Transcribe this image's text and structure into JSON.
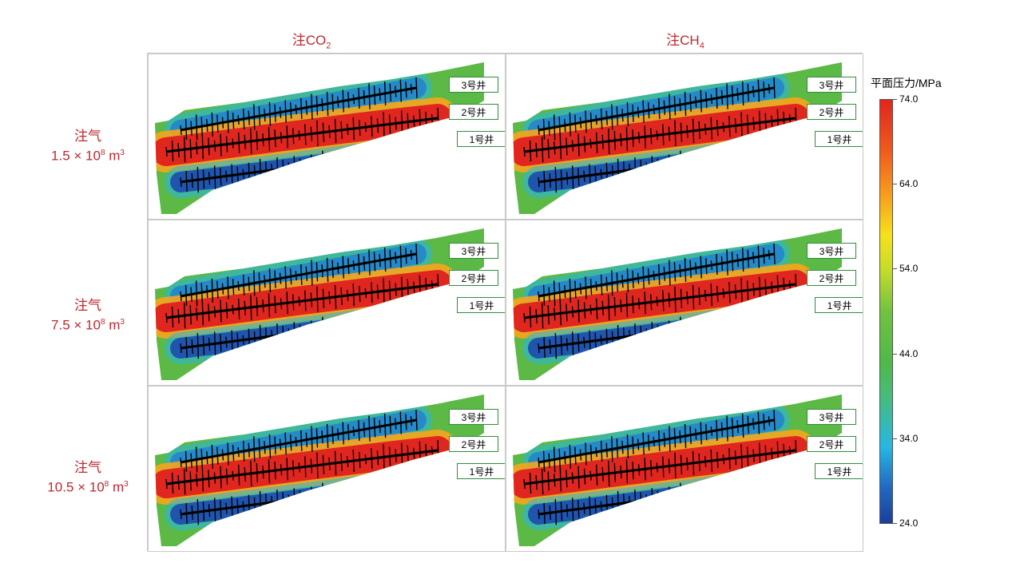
{
  "columns": [
    {
      "prefix": "注",
      "formula": "CO",
      "sub": "2"
    },
    {
      "prefix": "注",
      "formula": "CH",
      "sub": "4"
    }
  ],
  "rows": [
    {
      "line1": "注气",
      "coef": "1.5",
      "base": "10",
      "exp": "8",
      "unit": "m",
      "unit_exp": "3"
    },
    {
      "line1": "注气",
      "coef": "7.5",
      "base": "10",
      "exp": "8",
      "unit": "m",
      "unit_exp": "3"
    },
    {
      "line1": "注气",
      "coef": "10.5",
      "base": "10",
      "exp": "8",
      "unit": "m",
      "unit_exp": "3"
    }
  ],
  "wells": [
    "3号井",
    "2号井",
    "1号井"
  ],
  "colorbar": {
    "title": "平面压力/MPa",
    "ticks": [
      "74.0",
      "64.0",
      "54.0",
      "44.0",
      "34.0",
      "24.0"
    ],
    "colors": {
      "high": "#e0261f",
      "mid": "#4fb948",
      "low": "#1b3f9a"
    }
  }
}
